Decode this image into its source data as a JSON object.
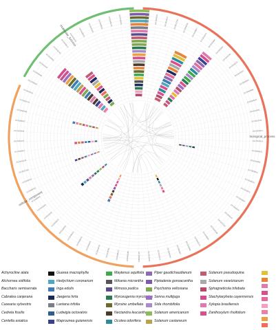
{
  "categories": [
    {
      "label": "biological_process",
      "color": "#E8735A"
    },
    {
      "label": "molecular_function",
      "color": "#6FBF73"
    },
    {
      "label": "cellular_component",
      "color": "#F0A160"
    }
  ],
  "go_terms": [
    "GO:0009987",
    "GO:0008152",
    "GO:0044237",
    "GO:0071704",
    "GO:0044238",
    "GO:0006807",
    "GO:0043170",
    "GO:0050896",
    "GO:0065007",
    "GO:0050789",
    "GO:0051179",
    "GO:0032502",
    "GO:0003824",
    "GO:0005488",
    "GO:0043167",
    "GO:0016491",
    "GO:0016740",
    "GO:0003674",
    "GO:0005575",
    "GO:0005623",
    "GO:0044464",
    "GO:0005622",
    "GO:0043229",
    "GO:0016020"
  ],
  "legend": [
    {
      "name": "Achyrocline alata",
      "color": ""
    },
    {
      "name": "Alchornea sidifolia",
      "color": ""
    },
    {
      "name": "Baccharis semiserrata",
      "color": ""
    },
    {
      "name": "Cabralea canjerana",
      "color": ""
    },
    {
      "name": "Casearia sylvestris",
      "color": ""
    },
    {
      "name": "Cedrela fissilis",
      "color": ""
    },
    {
      "name": "Centella asiatica",
      "color": ""
    },
    {
      "name": "Guarea macrophylla",
      "color": "#111111"
    },
    {
      "name": "Hedychium coronarium",
      "color": "#4DA9C0"
    },
    {
      "name": "Inga edulis",
      "color": "#3E7CB1"
    },
    {
      "name": "Jaegeria hirta",
      "color": "#1B2A55"
    },
    {
      "name": "Lantana trifolia",
      "color": "#7A7F8A"
    },
    {
      "name": "Ludwigia octovalvis",
      "color": "#2F5E8C"
    },
    {
      "name": "Maprounea guianensis",
      "color": "#3A3F8F"
    },
    {
      "name": "Maytenus aquifolia",
      "color": "#3DAA4B"
    },
    {
      "name": "Mikania micrantha",
      "color": "#555555"
    },
    {
      "name": "Mimosa pudica",
      "color": "#5B4A8B"
    },
    {
      "name": "Myrceugenia myrcioides",
      "color": "#2A7A52"
    },
    {
      "name": "Myrsine umbellata",
      "color": "#6B6B2E"
    },
    {
      "name": "Nectandra leucantha",
      "color": "#4A3B2B"
    },
    {
      "name": "Ocotea odorifera",
      "color": "#2E8B9A"
    },
    {
      "name": "Piper gaudichaudianum",
      "color": "#8C6BB1"
    },
    {
      "name": "Piptadenia gonoacantha",
      "color": "#7D5BA6"
    },
    {
      "name": "Psychotria vellosiana",
      "color": "#7FA850"
    },
    {
      "name": "Senna multijuga",
      "color": "#9A6FC0"
    },
    {
      "name": "Sida rhombifolia",
      "color": "#A88BC8"
    },
    {
      "name": "Solanum americanum",
      "color": "#8DBB5A"
    },
    {
      "name": "Solanum castaneum",
      "color": "#B9A24A"
    },
    {
      "name": "Solanum pseudoquina",
      "color": "#C25B6E"
    },
    {
      "name": "Solanum swartzianum",
      "color": "#A9A9A9"
    },
    {
      "name": "Sphagneticola trilobata",
      "color": "#B34A6A"
    },
    {
      "name": "Stachytarpheta cayennensis",
      "color": "#D04F8C"
    },
    {
      "name": "Xylopia brasiliensis",
      "color": "#E07AAE"
    },
    {
      "name": "Zanthoxylum rhoifolium",
      "color": "#D9508F"
    }
  ],
  "extra_swatches": [
    "#E2C13A",
    "#E8833A",
    "#E07AAE",
    "#D9508F",
    "#E56A9E",
    "#F2A1C0",
    "#EE7DA8",
    "#E8A040",
    "#F26B5B"
  ]
}
